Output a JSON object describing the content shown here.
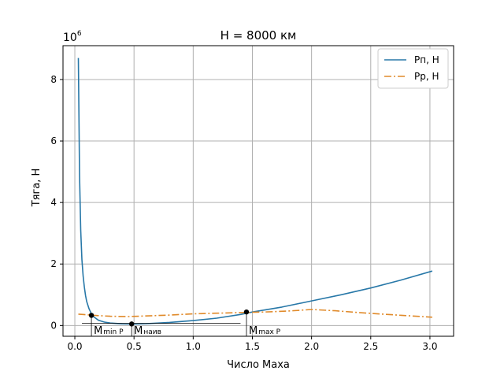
{
  "chart_data": {
    "type": "line",
    "title": "H = 8000 км",
    "xlabel": "Число Маха",
    "ylabel": "Тяга, Н",
    "y_scale_label": "1e6",
    "xlim": [
      -0.1,
      3.2
    ],
    "ylim": [
      -0.35,
      9.1
    ],
    "x_ticks": [
      "0.0",
      "0.5",
      "1.0",
      "1.5",
      "2.0",
      "2.5",
      "3.0"
    ],
    "y_ticks": [
      "0",
      "2",
      "4",
      "6",
      "8"
    ],
    "grid": true,
    "legend_position": "top-right",
    "series": [
      {
        "name": "Рп, Н",
        "color": "#2878a8",
        "style": "solid",
        "x": [
          0.03,
          0.04,
          0.05,
          0.06,
          0.07,
          0.08,
          0.09,
          0.1,
          0.12,
          0.14,
          0.16,
          0.2,
          0.25,
          0.3,
          0.4,
          0.5,
          0.6,
          0.8,
          1.0,
          1.2,
          1.4,
          1.5,
          1.75,
          2.0,
          2.25,
          2.5,
          2.75,
          3.02
        ],
        "values": [
          8.7,
          4.9,
          3.1,
          2.15,
          1.6,
          1.25,
          0.98,
          0.78,
          0.54,
          0.38,
          0.28,
          0.17,
          0.11,
          0.08,
          0.055,
          0.05,
          0.06,
          0.1,
          0.16,
          0.24,
          0.36,
          0.44,
          0.6,
          0.8,
          1.0,
          1.22,
          1.47,
          1.77
        ]
      },
      {
        "name": "Рр, Н",
        "color": "#e08a2a",
        "style": "dashdot",
        "x": [
          0.03,
          0.1,
          0.2,
          0.3,
          0.45,
          0.6,
          0.8,
          1.0,
          1.2,
          1.4,
          1.6,
          1.8,
          2.0,
          2.2,
          2.4,
          2.6,
          2.8,
          3.02
        ],
        "values": [
          0.37,
          0.35,
          0.32,
          0.3,
          0.29,
          0.31,
          0.34,
          0.38,
          0.4,
          0.42,
          0.44,
          0.47,
          0.52,
          0.48,
          0.42,
          0.37,
          0.32,
          0.27
        ]
      }
    ],
    "annotations": [
      {
        "main": "M",
        "sub": "min P",
        "x": 0.14,
        "y": 0.33
      },
      {
        "main": "M",
        "sub": "наив",
        "x": 0.48,
        "y": 0.05
      },
      {
        "main": "M",
        "sub": "max P",
        "x": 1.45,
        "y": 0.44
      }
    ],
    "baseline": {
      "x_start": 0.06,
      "x_end": 1.4,
      "y": 0.07
    }
  }
}
